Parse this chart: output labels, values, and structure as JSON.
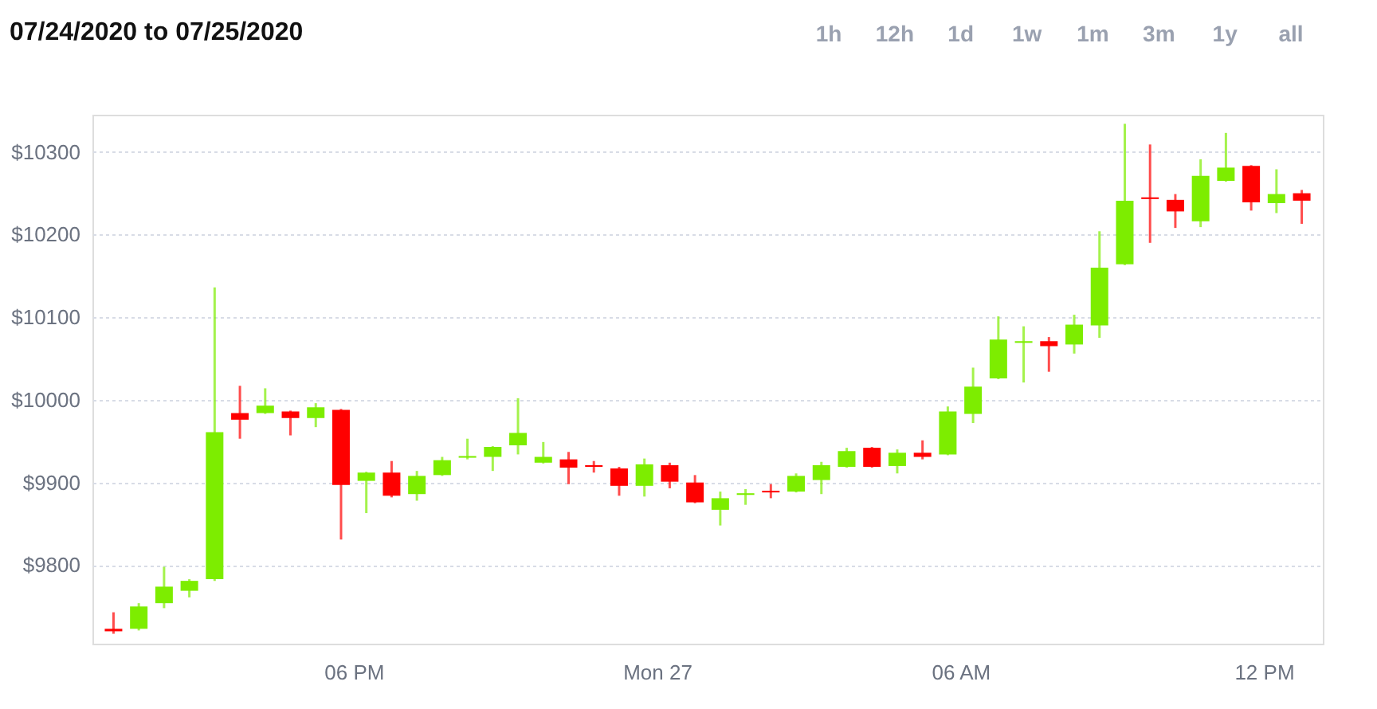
{
  "chart_data": {
    "type": "candlestick",
    "title": "07/24/2020 to 07/25/2020",
    "annotations": [
      "1h",
      "12h",
      "1d",
      "1w",
      "1m",
      "3m",
      "1y",
      "all"
    ],
    "x": [
      "2020-07-26T13:15",
      "2020-07-26T13:45",
      "2020-07-26T14:15",
      "2020-07-26T14:45",
      "2020-07-26T15:15",
      "2020-07-26T15:45",
      "2020-07-26T16:15",
      "2020-07-26T16:45",
      "2020-07-26T17:15",
      "2020-07-26T17:45",
      "2020-07-26T18:15",
      "2020-07-26T18:45",
      "2020-07-26T19:15",
      "2020-07-26T19:45",
      "2020-07-26T20:15",
      "2020-07-26T20:45",
      "2020-07-26T21:15",
      "2020-07-26T21:45",
      "2020-07-26T22:15",
      "2020-07-26T22:45",
      "2020-07-26T23:15",
      "2020-07-26T23:45",
      "2020-07-27T00:15",
      "2020-07-27T00:45",
      "2020-07-27T01:15",
      "2020-07-27T01:45",
      "2020-07-27T02:15",
      "2020-07-27T02:45",
      "2020-07-27T03:15",
      "2020-07-27T03:45",
      "2020-07-27T04:15",
      "2020-07-27T04:45",
      "2020-07-27T05:15",
      "2020-07-27T05:45",
      "2020-07-27T06:15",
      "2020-07-27T06:45",
      "2020-07-27T07:15",
      "2020-07-27T07:45",
      "2020-07-27T08:15",
      "2020-07-27T08:45",
      "2020-07-27T09:15",
      "2020-07-27T09:45",
      "2020-07-27T10:15",
      "2020-07-27T10:45",
      "2020-07-27T11:15",
      "2020-07-27T11:45",
      "2020-07-27T12:15",
      "2020-07-27T12:45"
    ],
    "ohlc": [
      [
        9723,
        9743,
        9717,
        9720
      ],
      [
        9723,
        9754,
        9721,
        9750
      ],
      [
        9754,
        9798,
        9748,
        9774
      ],
      [
        9769,
        9783,
        9761,
        9781
      ],
      [
        9783,
        10136,
        9781,
        9961
      ],
      [
        9984,
        10017,
        9953,
        9976
      ],
      [
        9984,
        10014,
        9983,
        9993
      ],
      [
        9986,
        9987,
        9957,
        9978
      ],
      [
        9978,
        9996,
        9967,
        9991
      ],
      [
        9988,
        9989,
        9831,
        9897
      ],
      [
        9902,
        9913,
        9863,
        9912
      ],
      [
        9912,
        9926,
        9882,
        9884
      ],
      [
        9886,
        9914,
        9878,
        9908
      ],
      [
        9909,
        9931,
        9908,
        9927
      ],
      [
        9930,
        9953,
        9928,
        9932
      ],
      [
        9931,
        9944,
        9914,
        9943
      ],
      [
        9945,
        10002,
        9934,
        9960
      ],
      [
        9924,
        9949,
        9923,
        9931
      ],
      [
        9928,
        9937,
        9898,
        9918
      ],
      [
        9921,
        9926,
        9912,
        9919
      ],
      [
        9917,
        9919,
        9884,
        9896
      ],
      [
        9896,
        9929,
        9883,
        9922
      ],
      [
        9921,
        9924,
        9893,
        9901
      ],
      [
        9900,
        9909,
        9875,
        9876
      ],
      [
        9867,
        9889,
        9848,
        9881
      ],
      [
        9885,
        9892,
        9873,
        9887
      ],
      [
        9890,
        9898,
        9881,
        9888
      ],
      [
        9889,
        9911,
        9888,
        9908
      ],
      [
        9903,
        9925,
        9886,
        9921
      ],
      [
        9919,
        9942,
        9918,
        9938
      ],
      [
        9942,
        9943,
        9918,
        9919
      ],
      [
        9920,
        9940,
        9911,
        9936
      ],
      [
        9936,
        9951,
        9928,
        9931
      ],
      [
        9934,
        9992,
        9933,
        9986
      ],
      [
        9983,
        10039,
        9972,
        10016
      ],
      [
        10026,
        10101,
        10025,
        10073
      ],
      [
        10069,
        10089,
        10021,
        10071
      ],
      [
        10071,
        10076,
        10034,
        10065
      ],
      [
        10067,
        10103,
        10056,
        10091
      ],
      [
        10090,
        10204,
        10075,
        10160
      ],
      [
        10164,
        10334,
        10163,
        10241
      ],
      [
        10245,
        10309,
        10190,
        10243
      ],
      [
        10242,
        10249,
        10208,
        10228
      ],
      [
        10216,
        10291,
        10209,
        10271
      ],
      [
        10265,
        10323,
        10264,
        10281
      ],
      [
        10283,
        10284,
        10229,
        10239
      ],
      [
        10238,
        10279,
        10226,
        10249
      ],
      [
        10250,
        10254,
        10213,
        10241
      ]
    ],
    "colors": [
      "#ff0000",
      "#7ded00",
      "#7ded00",
      "#7ded00",
      "#7ded00",
      "#ff0000",
      "#7ded00",
      "#ff0000",
      "#7ded00",
      "#ff0000",
      "#7ded00",
      "#ff0000",
      "#7ded00",
      "#7ded00",
      "#7ded00",
      "#7ded00",
      "#7ded00",
      "#7ded00",
      "#ff0000",
      "#ff0000",
      "#ff0000",
      "#7ded00",
      "#ff0000",
      "#ff0000",
      "#7ded00",
      "#7ded00",
      "#ff0000",
      "#7ded00",
      "#7ded00",
      "#7ded00",
      "#ff0000",
      "#7ded00",
      "#ff0000",
      "#7ded00",
      "#7ded00",
      "#7ded00",
      "#7ded00",
      "#ff0000",
      "#7ded00",
      "#7ded00",
      "#7ded00",
      "#ff0000",
      "#ff0000",
      "#7ded00",
      "#7ded00",
      "#ff0000",
      "#7ded00",
      "#ff0000"
    ],
    "xlim": [
      "2020-07-26T12:50",
      "2020-07-27T13:10"
    ],
    "xticks": [
      {
        "value": "2020-07-26T18:00",
        "label": "06 PM"
      },
      {
        "value": "2020-07-27T00:00",
        "label": "Mon 27"
      },
      {
        "value": "2020-07-27T06:00",
        "label": "06 AM"
      },
      {
        "value": "2020-07-27T12:00",
        "label": "12 PM"
      }
    ],
    "ylim": [
      9705,
      10345
    ],
    "yticks": [
      {
        "value": 9800,
        "label": "$9800"
      },
      {
        "value": 9900,
        "label": "$9900"
      },
      {
        "value": 10000,
        "label": "$10000"
      },
      {
        "value": 10100,
        "label": "$10100"
      },
      {
        "value": 10200,
        "label": "$10200"
      },
      {
        "value": 10300,
        "label": "$10300"
      }
    ],
    "grid": "y"
  }
}
